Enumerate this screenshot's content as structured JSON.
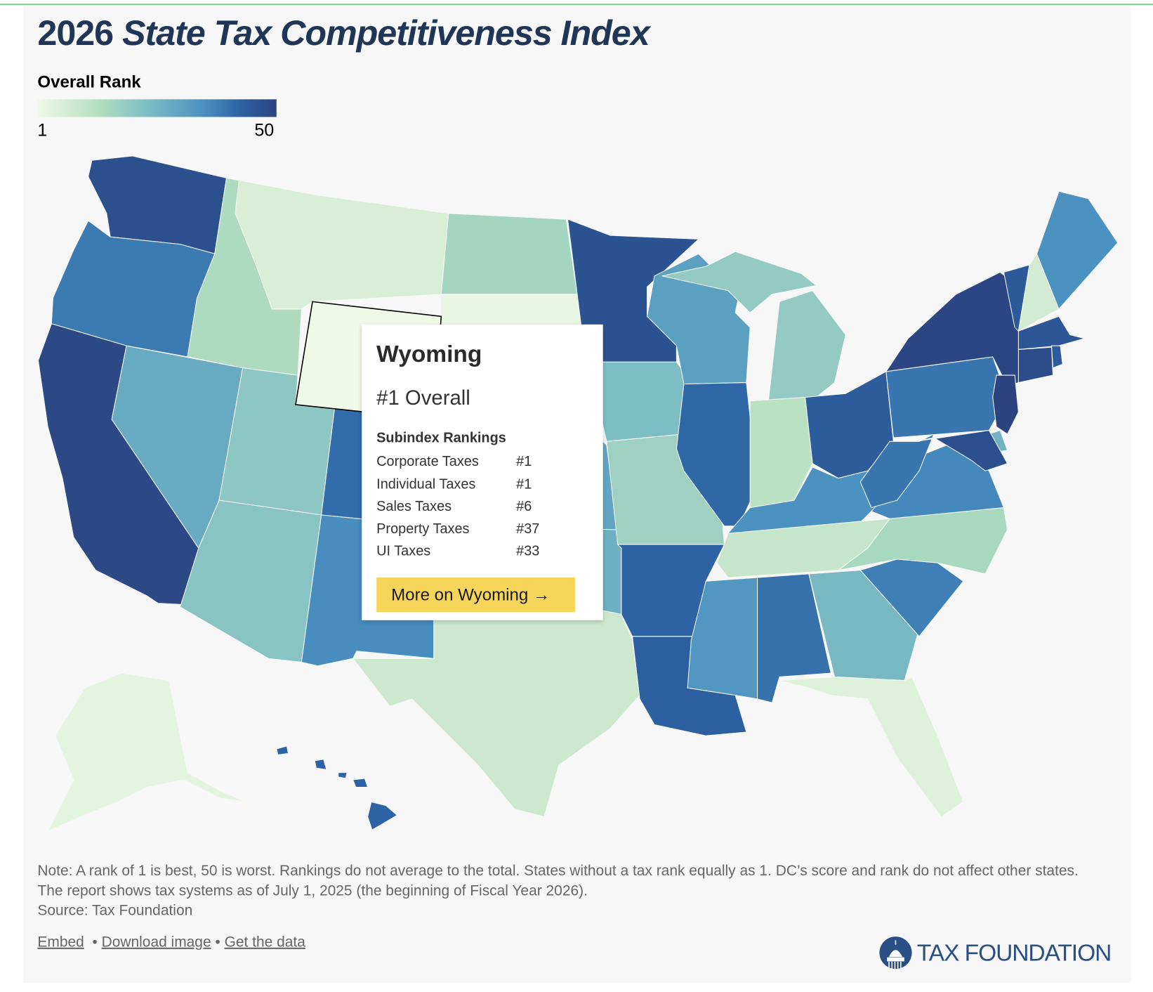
{
  "title_plain": "2026 ",
  "title_italic": "State Tax Competitiveness Index",
  "legend": {
    "title": "Overall Rank",
    "min": "1",
    "max": "50",
    "colors": [
      "#f0f9e8",
      "#b5dfbf",
      "#7fbfc4",
      "#4a90c0",
      "#2c62a3",
      "#2c437f"
    ]
  },
  "chart_data": {
    "type": "choropleth",
    "metric": "Overall Rank",
    "range": [
      1,
      50
    ],
    "selected": "WY",
    "states": [
      {
        "abbr": "WA",
        "name": "Washington",
        "rank": 46
      },
      {
        "abbr": "OR",
        "name": "Oregon",
        "rank": 35
      },
      {
        "abbr": "CA",
        "name": "California",
        "rank": 48
      },
      {
        "abbr": "NV",
        "name": "Nevada",
        "rank": 25
      },
      {
        "abbr": "ID",
        "name": "Idaho",
        "rank": 12
      },
      {
        "abbr": "MT",
        "name": "Montana",
        "rank": 5
      },
      {
        "abbr": "WY",
        "name": "Wyoming",
        "rank": 1
      },
      {
        "abbr": "UT",
        "name": "Utah",
        "rank": 18
      },
      {
        "abbr": "CO",
        "name": "Colorado",
        "rank": 38
      },
      {
        "abbr": "AZ",
        "name": "Arizona",
        "rank": 19
      },
      {
        "abbr": "NM",
        "name": "New Mexico",
        "rank": 31
      },
      {
        "abbr": "ND",
        "name": "North Dakota",
        "rank": 14
      },
      {
        "abbr": "SD",
        "name": "South Dakota",
        "rank": 2
      },
      {
        "abbr": "NE",
        "name": "Nebraska",
        "rank": 28
      },
      {
        "abbr": "KS",
        "name": "Kansas",
        "rank": 26
      },
      {
        "abbr": "OK",
        "name": "Oklahoma",
        "rank": 24
      },
      {
        "abbr": "TX",
        "name": "Texas",
        "rank": 7
      },
      {
        "abbr": "MN",
        "name": "Minnesota",
        "rank": 45
      },
      {
        "abbr": "IA",
        "name": "Iowa",
        "rank": 21
      },
      {
        "abbr": "MO",
        "name": "Missouri",
        "rank": 15
      },
      {
        "abbr": "AR",
        "name": "Arkansas",
        "rank": 40
      },
      {
        "abbr": "LA",
        "name": "Louisiana",
        "rank": 41
      },
      {
        "abbr": "WI",
        "name": "Wisconsin",
        "rank": 27
      },
      {
        "abbr": "IL",
        "name": "Illinois",
        "rank": 39
      },
      {
        "abbr": "MI",
        "name": "Michigan",
        "rank": 17
      },
      {
        "abbr": "IN",
        "name": "Indiana",
        "rank": 10
      },
      {
        "abbr": "OH",
        "name": "Ohio",
        "rank": 42
      },
      {
        "abbr": "KY",
        "name": "Kentucky",
        "rank": 30
      },
      {
        "abbr": "TN",
        "name": "Tennessee",
        "rank": 8
      },
      {
        "abbr": "MS",
        "name": "Mississippi",
        "rank": 29
      },
      {
        "abbr": "AL",
        "name": "Alabama",
        "rank": 37
      },
      {
        "abbr": "GA",
        "name": "Georgia",
        "rank": 22
      },
      {
        "abbr": "FL",
        "name": "Florida",
        "rank": 4
      },
      {
        "abbr": "SC",
        "name": "South Carolina",
        "rank": 34
      },
      {
        "abbr": "NC",
        "name": "North Carolina",
        "rank": 13
      },
      {
        "abbr": "VA",
        "name": "Virginia",
        "rank": 32
      },
      {
        "abbr": "WV",
        "name": "West Virginia",
        "rank": 36
      },
      {
        "abbr": "PA",
        "name": "Pennsylvania",
        "rank": 36
      },
      {
        "abbr": "NY",
        "name": "New York",
        "rank": 49
      },
      {
        "abbr": "VT",
        "name": "Vermont",
        "rank": 43
      },
      {
        "abbr": "NH",
        "name": "New Hampshire",
        "rank": 6
      },
      {
        "abbr": "ME",
        "name": "Maine",
        "rank": 30
      },
      {
        "abbr": "MA",
        "name": "Massachusetts",
        "rank": 44
      },
      {
        "abbr": "RI",
        "name": "Rhode Island",
        "rank": 42
      },
      {
        "abbr": "CT",
        "name": "Connecticut",
        "rank": 47
      },
      {
        "abbr": "NJ",
        "name": "New Jersey",
        "rank": 50
      },
      {
        "abbr": "DE",
        "name": "Delaware",
        "rank": 23
      },
      {
        "abbr": "MD",
        "name": "Maryland",
        "rank": 46
      },
      {
        "abbr": "AK",
        "name": "Alaska",
        "rank": 3
      },
      {
        "abbr": "HI",
        "name": "Hawaii",
        "rank": 40
      }
    ]
  },
  "tooltip": {
    "state": "Wyoming",
    "overall": "#1 Overall",
    "subindex_title": "Subindex Rankings",
    "rows": [
      {
        "label": "Corporate Taxes",
        "value": "#1"
      },
      {
        "label": "Individual Taxes",
        "value": "#1"
      },
      {
        "label": "Sales Taxes",
        "value": "#6"
      },
      {
        "label": "Property Taxes",
        "value": "#37"
      },
      {
        "label": "UI Taxes",
        "value": "#33"
      }
    ],
    "button": "More on Wyoming →"
  },
  "note": "Note: A rank of 1 is best, 50 is worst. Rankings do not average to the total. States without a tax rank equally as 1. DC’s score and rank do not affect other states. The report shows tax systems as of July 1, 2025 (the beginning of Fiscal Year 2026).",
  "source": "Source: Tax Foundation",
  "links": {
    "embed": "Embed",
    "download": "Download image",
    "data": "Get the data",
    "sep": "•"
  },
  "logo": {
    "text": "TAX FOUNDATION"
  }
}
